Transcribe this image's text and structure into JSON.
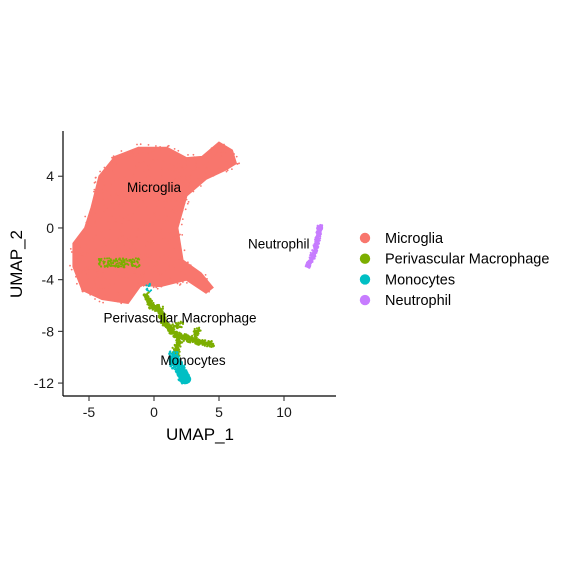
{
  "chart_data": {
    "type": "scatter",
    "xlabel": "UMAP_1",
    "ylabel": "UMAP_2",
    "xlim": [
      -7,
      14
    ],
    "ylim": [
      -13,
      7.5
    ],
    "x_ticks": [
      -5,
      0,
      5,
      10
    ],
    "y_ticks": [
      4,
      0,
      -4,
      -8,
      -12
    ],
    "x_tick_labels": [
      "-5",
      "0",
      "5",
      "10"
    ],
    "y_tick_labels": [
      "4",
      "0",
      "-4",
      "-8",
      "-12"
    ],
    "grid": false,
    "legend_position": "right",
    "series": [
      {
        "name": "Microglia",
        "color": "#F8766D",
        "label": "Microglia",
        "label_at": [
          0,
          2.8
        ],
        "region": [
          [
            -4.8,
            1.6
          ],
          [
            -4.2,
            4.0
          ],
          [
            -3.0,
            5.5
          ],
          [
            -1.2,
            6.2
          ],
          [
            1.0,
            6.2
          ],
          [
            2.5,
            5.4
          ],
          [
            3.7,
            5.5
          ],
          [
            5.0,
            6.6
          ],
          [
            6.0,
            6.0
          ],
          [
            6.3,
            5.0
          ],
          [
            5.5,
            4.5
          ],
          [
            4.0,
            3.8
          ],
          [
            2.5,
            2.5
          ],
          [
            1.8,
            0.0
          ],
          [
            2.2,
            -2.5
          ],
          [
            3.6,
            -3.5
          ],
          [
            4.5,
            -4.6
          ],
          [
            4.0,
            -5.0
          ],
          [
            2.5,
            -4.0
          ],
          [
            0.5,
            -4.5
          ],
          [
            -1.0,
            -4.4
          ],
          [
            -2.0,
            -5.8
          ],
          [
            -4.0,
            -5.5
          ],
          [
            -5.5,
            -4.8
          ],
          [
            -6.2,
            -3.0
          ],
          [
            -6.2,
            -1.2
          ],
          [
            -5.3,
            0.0
          ]
        ]
      },
      {
        "name": "Perivascular Macrophage",
        "color": "#7CAE00",
        "label": "Perivascular Macrophage",
        "label_at": [
          2,
          -7.3
        ],
        "trail": [
          [
            -0.6,
            -5.2
          ],
          [
            -0.2,
            -6.0
          ],
          [
            0.5,
            -6.3
          ],
          [
            0.7,
            -7.1
          ],
          [
            1.2,
            -7.8
          ],
          [
            1.8,
            -8.3
          ],
          [
            3.3,
            -8.8
          ],
          [
            4.5,
            -9.0
          ]
        ],
        "branches": [
          [
            [
              1.8,
              -8.3
            ],
            [
              2.0,
              -8.9
            ],
            [
              1.6,
              -9.4
            ],
            [
              1.8,
              -9.8
            ]
          ],
          [
            [
              1.2,
              -7.8
            ],
            [
              2.2,
              -7.4
            ]
          ],
          [
            [
              3.0,
              -8.6
            ],
            [
              3.4,
              -7.8
            ]
          ]
        ],
        "blob": [
          -2.7,
          -2.7
        ]
      },
      {
        "name": "Monocytes",
        "color": "#00BFC4",
        "label": "Monocytes",
        "label_at": [
          3,
          -10.6
        ],
        "trail": [
          [
            1.5,
            -9.8
          ],
          [
            1.6,
            -10.4
          ],
          [
            2.0,
            -10.9
          ],
          [
            2.2,
            -11.4
          ],
          [
            2.4,
            -11.7
          ]
        ],
        "stray": [
          -0.4,
          -4.6
        ]
      },
      {
        "name": "Neutrophil",
        "color": "#C77CFF",
        "label": "Neutrophil",
        "label_at": [
          9.6,
          -1.6
        ],
        "trail": [
          [
            11.8,
            -3.0
          ],
          [
            12.1,
            -2.4
          ],
          [
            12.4,
            -1.7
          ],
          [
            12.6,
            -0.9
          ],
          [
            12.7,
            -0.1
          ],
          [
            12.8,
            0.1
          ]
        ]
      }
    ]
  }
}
